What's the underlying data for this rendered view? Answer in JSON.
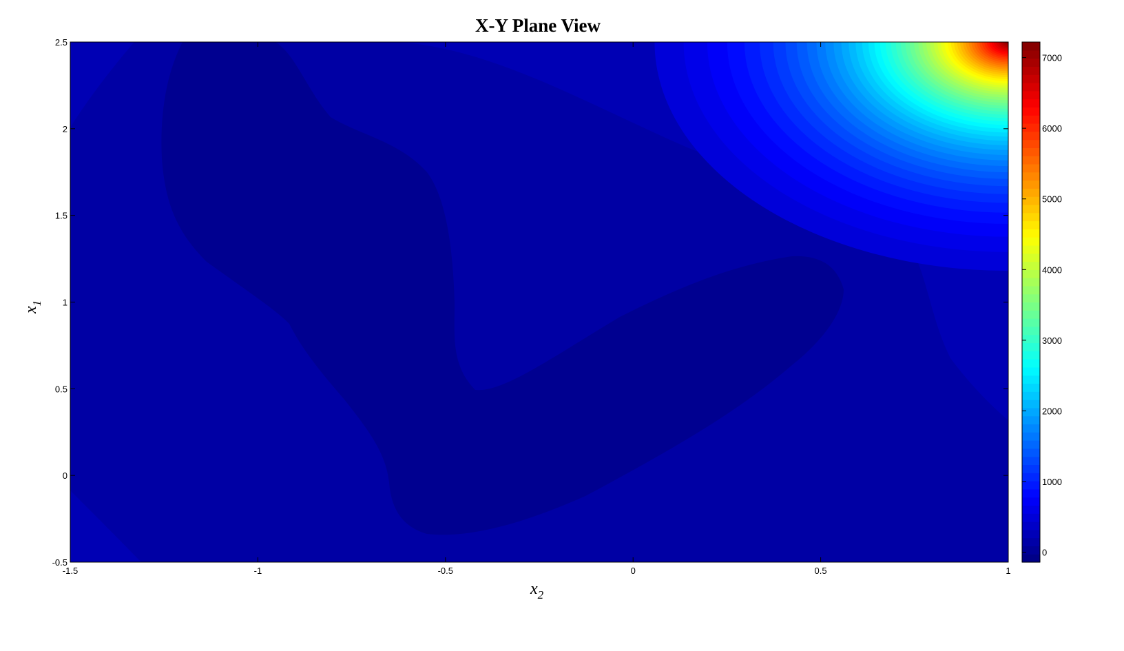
{
  "chart_data": {
    "type": "heatmap",
    "subtype": "filled-contour",
    "title": "X-Y Plane View",
    "xlabel": "x",
    "xlabel_subscript": "2",
    "ylabel": "x",
    "ylabel_subscript": "1",
    "xlim": [
      -1.5,
      1
    ],
    "ylim": [
      -0.5,
      2.5
    ],
    "xticks": [
      "-1.5",
      "-1",
      "-0.5",
      "0",
      "0.5",
      "1"
    ],
    "yticks": [
      "-0.5",
      "0",
      "0.5",
      "1",
      "1.5",
      "2",
      "2.5"
    ],
    "colormap": "jet",
    "clim": [
      -140,
      7220
    ],
    "colorbar": {
      "location": "right",
      "ticks": [
        "0",
        "1000",
        "2000",
        "3000",
        "4000",
        "5000",
        "6000",
        "7000"
      ]
    },
    "max_location": {
      "x": 1,
      "y": 2.5,
      "value": 7200
    },
    "grid": false,
    "colors": {
      "low_region": "#000090",
      "base": "#0000A4",
      "mid_band": "#0000B4"
    }
  }
}
